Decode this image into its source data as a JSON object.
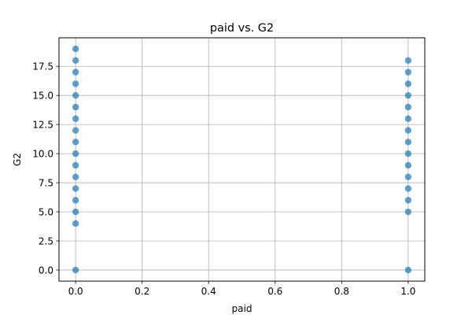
{
  "chart_data": {
    "type": "scatter",
    "title": "paid vs. G2",
    "xlabel": "paid",
    "ylabel": "G2",
    "xlim": [
      -0.05,
      1.05
    ],
    "ylim": [
      -0.95,
      19.95
    ],
    "xticks": [
      0.0,
      0.2,
      0.4,
      0.6,
      0.8,
      1.0
    ],
    "yticks": [
      0.0,
      2.5,
      5.0,
      7.5,
      10.0,
      12.5,
      15.0,
      17.5
    ],
    "xtick_labels": [
      "0.0",
      "0.2",
      "0.4",
      "0.6",
      "0.8",
      "1.0"
    ],
    "ytick_labels": [
      "0.0",
      "2.5",
      "5.0",
      "7.5",
      "10.0",
      "12.5",
      "15.0",
      "17.5"
    ],
    "grid": true,
    "marker_color": "#1f77b4",
    "series": [
      {
        "points": [
          [
            0,
            0
          ],
          [
            0,
            4
          ],
          [
            0,
            5
          ],
          [
            0,
            6
          ],
          [
            0,
            7
          ],
          [
            0,
            8
          ],
          [
            0,
            9
          ],
          [
            0,
            10
          ],
          [
            0,
            11
          ],
          [
            0,
            12
          ],
          [
            0,
            13
          ],
          [
            0,
            14
          ],
          [
            0,
            15
          ],
          [
            0,
            16
          ],
          [
            0,
            17
          ],
          [
            0,
            18
          ],
          [
            0,
            19
          ],
          [
            1,
            0
          ],
          [
            1,
            5
          ],
          [
            1,
            6
          ],
          [
            1,
            7
          ],
          [
            1,
            8
          ],
          [
            1,
            9
          ],
          [
            1,
            10
          ],
          [
            1,
            11
          ],
          [
            1,
            12
          ],
          [
            1,
            13
          ],
          [
            1,
            14
          ],
          [
            1,
            15
          ],
          [
            1,
            16
          ],
          [
            1,
            17
          ],
          [
            1,
            18
          ]
        ]
      }
    ]
  }
}
